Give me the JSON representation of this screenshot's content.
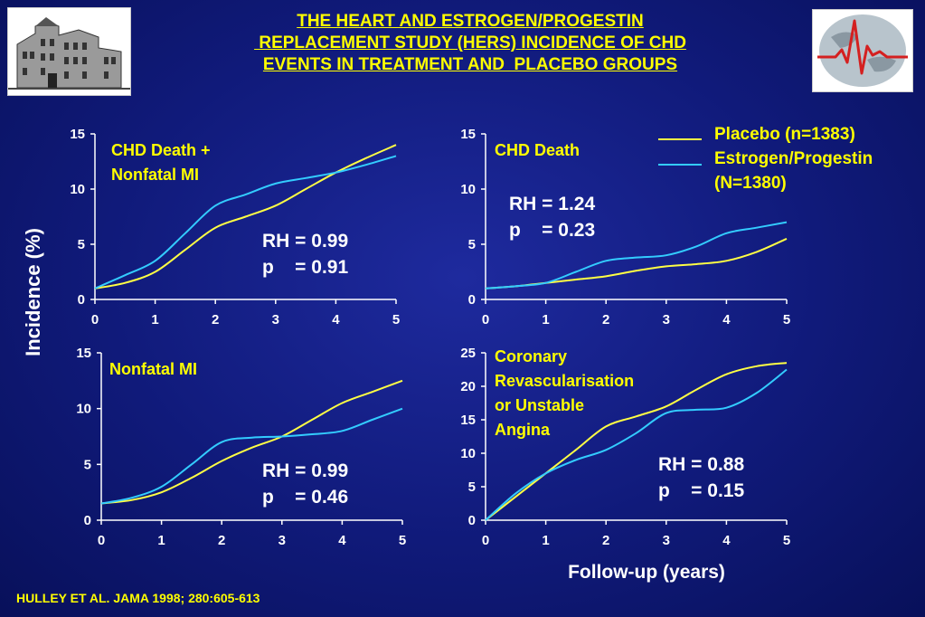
{
  "title": {
    "line1": "THE HEART AND ESTROGEN/PROGESTIN",
    "line2": " REPLACEMENT STUDY (HERS) INCIDENCE OF CHD",
    "line3": "EVENTS IN TREATMENT AND  PLACEBO GROUPS"
  },
  "logos": {
    "left": "building-logo",
    "right": "ecg-globe-logo"
  },
  "axis_labels": {
    "y": "Incidence (%)",
    "x": "Follow-up (years)"
  },
  "legend": {
    "placebo": "Placebo (n=1383)",
    "estrogen_line1": "Estrogen/Progestin",
    "estrogen_line2": "(N=1380)"
  },
  "colors": {
    "placebo": "#ffff44",
    "estrogen": "#33ccff",
    "text": "#ffff00",
    "axis": "#ffffff"
  },
  "footer": "HULLEY ET AL. JAMA 1998; 280:605-613",
  "chart_data": [
    {
      "type": "line",
      "title": "CHD Death +\nNonfatal MI",
      "annotation": [
        "RH = 0.99",
        "p    = 0.91"
      ],
      "xlim": [
        0,
        5
      ],
      "ylim": [
        0,
        15
      ],
      "xticks": [
        0,
        1,
        2,
        3,
        4,
        5
      ],
      "yticks": [
        0,
        5,
        10,
        15
      ],
      "series": [
        {
          "name": "Placebo (n=1383)",
          "x": [
            0,
            0.5,
            1,
            1.5,
            2,
            2.5,
            3,
            3.5,
            4,
            4.5,
            5
          ],
          "y": [
            1.0,
            1.5,
            2.5,
            4.5,
            6.5,
            7.5,
            8.5,
            10.0,
            11.5,
            12.8,
            14.0
          ]
        },
        {
          "name": "Estrogen/Progestin (N=1380)",
          "x": [
            0,
            0.5,
            1,
            1.5,
            2,
            2.5,
            3,
            3.5,
            4,
            4.5,
            5
          ],
          "y": [
            1.0,
            2.2,
            3.5,
            6.0,
            8.5,
            9.5,
            10.5,
            11.0,
            11.5,
            12.2,
            13.0
          ]
        }
      ]
    },
    {
      "type": "line",
      "title": "CHD Death",
      "annotation": [
        "RH = 1.24",
        "p    = 0.23"
      ],
      "xlim": [
        0,
        5
      ],
      "ylim": [
        0,
        15
      ],
      "xticks": [
        0,
        1,
        2,
        3,
        4,
        5
      ],
      "yticks": [
        0,
        5,
        10,
        15
      ],
      "series": [
        {
          "name": "Placebo (n=1383)",
          "x": [
            0,
            0.5,
            1,
            1.5,
            2,
            2.5,
            3,
            3.5,
            4,
            4.5,
            5
          ],
          "y": [
            1.0,
            1.2,
            1.5,
            1.8,
            2.1,
            2.6,
            3.0,
            3.2,
            3.5,
            4.3,
            5.5
          ]
        },
        {
          "name": "Estrogen/Progestin (N=1380)",
          "x": [
            0,
            0.5,
            1,
            1.5,
            2,
            2.5,
            3,
            3.5,
            4,
            4.5,
            5
          ],
          "y": [
            1.0,
            1.2,
            1.5,
            2.5,
            3.5,
            3.8,
            4.0,
            4.8,
            6.0,
            6.5,
            7.0
          ]
        }
      ]
    },
    {
      "type": "line",
      "title": "Nonfatal MI",
      "annotation": [
        "RH = 0.99",
        "p    = 0.46"
      ],
      "xlim": [
        0,
        5
      ],
      "ylim": [
        0,
        15
      ],
      "xticks": [
        0,
        1,
        2,
        3,
        4,
        5
      ],
      "yticks": [
        0,
        5,
        10,
        15
      ],
      "series": [
        {
          "name": "Placebo (n=1383)",
          "x": [
            0,
            0.5,
            1,
            1.5,
            2,
            2.5,
            3,
            3.5,
            4,
            4.5,
            5
          ],
          "y": [
            1.5,
            1.8,
            2.5,
            3.8,
            5.3,
            6.5,
            7.5,
            9.0,
            10.5,
            11.5,
            12.5
          ]
        },
        {
          "name": "Estrogen/Progestin (N=1380)",
          "x": [
            0,
            0.5,
            1,
            1.5,
            2,
            2.5,
            3,
            3.5,
            4,
            4.5,
            5
          ],
          "y": [
            1.5,
            2.0,
            3.0,
            5.0,
            7.0,
            7.4,
            7.5,
            7.7,
            8.0,
            9.0,
            10.0
          ]
        }
      ]
    },
    {
      "type": "line",
      "title": "Coronary\nRevascularisation\nor Unstable\nAngina",
      "annotation": [
        "RH = 0.88",
        "p    = 0.15"
      ],
      "xlim": [
        0,
        5
      ],
      "ylim": [
        0,
        25
      ],
      "xticks": [
        0,
        1,
        2,
        3,
        4,
        5
      ],
      "yticks": [
        0,
        5,
        10,
        15,
        20,
        25
      ],
      "series": [
        {
          "name": "Placebo (n=1383)",
          "x": [
            0,
            0.5,
            1,
            1.5,
            2,
            2.5,
            3,
            3.5,
            4,
            4.5,
            5
          ],
          "y": [
            0,
            3.5,
            7.0,
            10.5,
            14.0,
            15.5,
            17.0,
            19.5,
            21.8,
            23.0,
            23.5
          ]
        },
        {
          "name": "Estrogen/Progestin (N=1380)",
          "x": [
            0,
            0.5,
            1,
            1.5,
            2,
            2.5,
            3,
            3.5,
            4,
            4.5,
            5
          ],
          "y": [
            0,
            4.0,
            7.0,
            9.0,
            10.5,
            13.0,
            16.0,
            16.5,
            16.8,
            19.0,
            22.5
          ]
        }
      ]
    }
  ]
}
